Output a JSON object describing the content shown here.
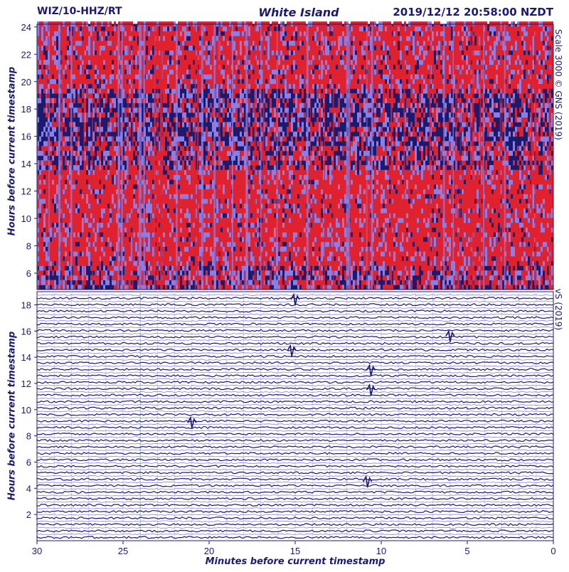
{
  "header": {
    "station": "WIZ/10-HHZ/RT",
    "place": "White Island",
    "timestamp": "2019/12/12 20:58:00 NZDT"
  },
  "side_labels": {
    "top": "Scale 3000 © GNS (2019)",
    "bottom": "vS (2019)"
  },
  "chart_data": [
    {
      "type": "heatmap",
      "title": "",
      "xlabel": "",
      "ylabel": "Hours before current timestamp",
      "ylim": [
        4.8,
        24.2
      ],
      "yticks": [
        6,
        8,
        10,
        12,
        14,
        16,
        18,
        20,
        22,
        24
      ],
      "colors": {
        "background": "#1a1a6e",
        "mid": "#8a7fe6",
        "high": "#e0212e"
      }
    },
    {
      "type": "line",
      "title": "",
      "xlabel": "Minutes before current timestamp",
      "ylabel": "Hours before current timestamp",
      "xlim": [
        30,
        0
      ],
      "xticks": [
        30,
        25,
        20,
        15,
        10,
        5,
        0
      ],
      "ylim": [
        0,
        19
      ],
      "yticks": [
        2,
        4,
        6,
        8,
        10,
        12,
        14,
        16,
        18
      ],
      "trace_colors": [
        "#1a1a6e",
        "#8a7fe6"
      ],
      "events": [
        {
          "minute": 15.0,
          "hour": 18.4
        },
        {
          "minute": 6.0,
          "hour": 15.6
        },
        {
          "minute": 10.6,
          "hour": 13.0
        },
        {
          "minute": 10.6,
          "hour": 11.5
        },
        {
          "minute": 15.2,
          "hour": 14.5
        },
        {
          "minute": 21.0,
          "hour": 9.0
        },
        {
          "minute": 10.8,
          "hour": 4.5
        }
      ]
    }
  ]
}
